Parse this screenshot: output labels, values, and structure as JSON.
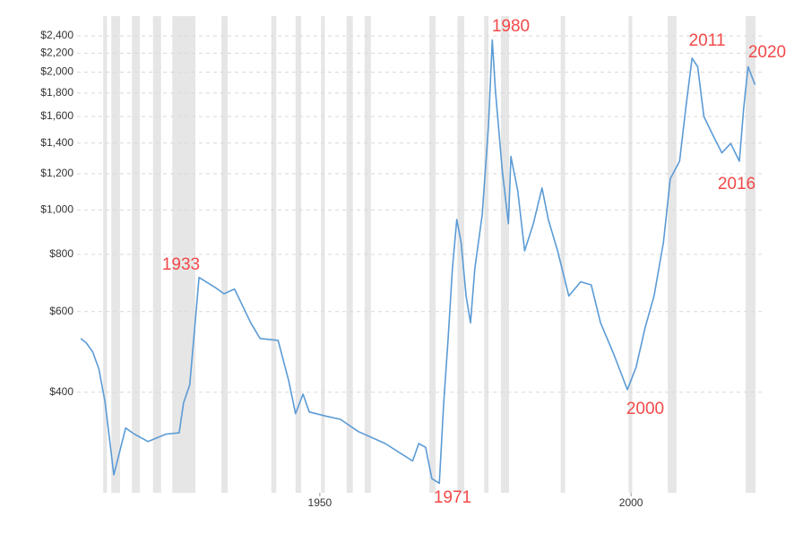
{
  "chart_data": {
    "type": "line",
    "log_y": true,
    "grid": true,
    "color": "#5b9bd5",
    "shade_color": "#e6e6e6",
    "xlim": [
      1911,
      2021
    ],
    "xticks": [
      1950,
      2000
    ],
    "ylim": [
      250,
      2500
    ],
    "yticks": [
      {
        "value": 400,
        "label": "$400"
      },
      {
        "value": 600,
        "label": "$600"
      },
      {
        "value": 800,
        "label": "$800"
      },
      {
        "value": 1000,
        "label": "$1,000"
      },
      {
        "value": 1200,
        "label": "$1,200"
      },
      {
        "value": 1400,
        "label": "$1,400"
      },
      {
        "value": 1600,
        "label": "$1,600"
      },
      {
        "value": 1800,
        "label": "$1,800"
      },
      {
        "value": 2000,
        "label": "$2,000"
      },
      {
        "value": 2200,
        "label": "$2,200"
      },
      {
        "value": 2400,
        "label": "$2,400"
      }
    ],
    "recessions": [
      [
        1915.2,
        1915.8
      ],
      [
        1916.5,
        1917.9
      ],
      [
        1919.8,
        1921.1
      ],
      [
        1923.2,
        1924.5
      ],
      [
        1926.3,
        1930.0
      ],
      [
        1934.2,
        1935.2
      ],
      [
        1942.2,
        1943.0
      ],
      [
        1946.1,
        1947.0
      ],
      [
        1950.2,
        1950.8
      ],
      [
        1954.3,
        1955.3
      ],
      [
        1957.2,
        1958.2
      ],
      [
        1967.6,
        1968.6
      ],
      [
        1972.1,
        1973.2
      ],
      [
        1976.4,
        1977.1
      ],
      [
        1979.1,
        1980.4
      ],
      [
        1988.7,
        1989.4
      ],
      [
        1999.6,
        2000.2
      ],
      [
        2005.9,
        2007.3
      ],
      [
        2018.4,
        2020.0
      ]
    ],
    "x": [
      1911.6,
      1912.5,
      1913.5,
      1914.5,
      1915.5,
      1916.9,
      1918.8,
      1920.2,
      1922.4,
      1925.3,
      1927.4,
      1928.1,
      1929.1,
      1929.9,
      1930.6,
      1933.2,
      1934.6,
      1936.3,
      1938.9,
      1940.4,
      1943.3,
      1945.0,
      1946.1,
      1947.3,
      1948.3,
      1951.2,
      1953.3,
      1956.2,
      1960.5,
      1964.9,
      1965.9,
      1967.0,
      1968.0,
      1969.2,
      1969.9,
      1970.6,
      1971.3,
      1972.0,
      1972.7,
      1973.5,
      1974.2,
      1974.9,
      1976.1,
      1977.1,
      1977.7,
      1978.2,
      1979.3,
      1980.3,
      1980.7,
      1981.8,
      1982.9,
      1984.3,
      1985.7,
      1986.7,
      1988.2,
      1990.0,
      1991.9,
      1993.6,
      1995.1,
      1997.2,
      1999.4,
      2000.8,
      2002.3,
      2003.7,
      2005.2,
      2006.3,
      2007.8,
      2008.8,
      2009.8,
      2010.7,
      2011.7,
      2013.1,
      2014.6,
      2016.0,
      2017.4,
      2018.1,
      2018.8,
      2019.9
    ],
    "values": [
      524,
      512,
      490,
      450,
      380,
      264,
      334,
      324,
      312,
      324,
      326,
      379,
      415,
      554,
      712,
      677,
      656,
      672,
      567,
      524,
      519,
      424,
      359,
      396,
      362,
      354,
      349,
      328,
      309,
      283,
      309,
      303,
      259,
      253,
      379,
      519,
      744,
      953,
      850,
      649,
      567,
      744,
      978,
      1532,
      2351,
      1833,
      1222,
      933,
      1309,
      1102,
      814,
      933,
      1117,
      953,
      814,
      649,
      697,
      686,
      567,
      485,
      405,
      453,
      556,
      649,
      850,
      1170,
      1278,
      1675,
      2146,
      2055,
      1600,
      1462,
      1333,
      1397,
      1278,
      1675,
      2055,
      1878
    ],
    "annotations": [
      "1933",
      "1971",
      "1980",
      "2000",
      "2011",
      "2016",
      "2020"
    ]
  }
}
